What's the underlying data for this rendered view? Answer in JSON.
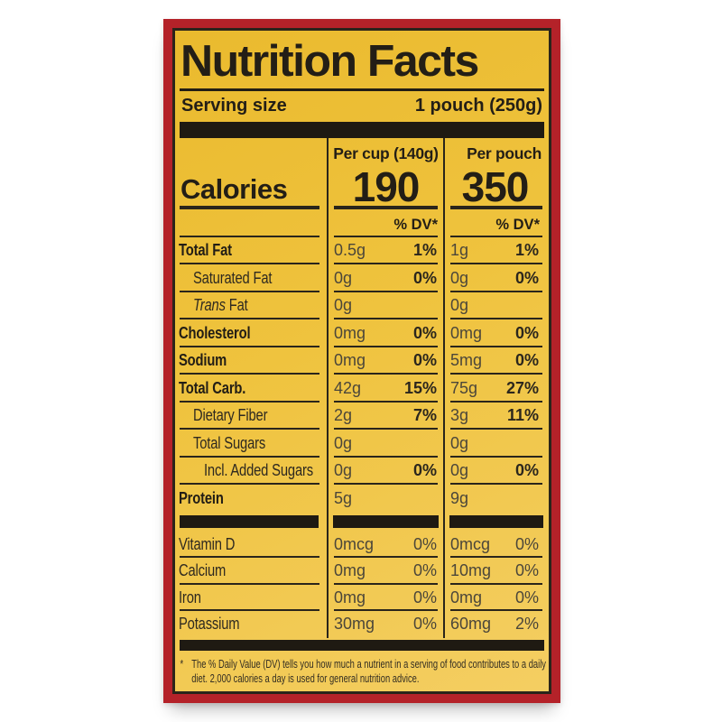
{
  "colors": {
    "label_yellow": "#efc33e",
    "label_red": "#b42229",
    "ink": "#221d15"
  },
  "label": {
    "title": "Nutrition Facts",
    "serving": {
      "label": "Serving size",
      "value": "1 pouch (250g)"
    },
    "columns": {
      "per_cup": "Per cup (140g)",
      "per_pouch": "Per pouch"
    },
    "calories": {
      "label": "Calories",
      "per_cup": "190",
      "per_pouch": "350"
    },
    "dv_header": "% DV*",
    "nutrients": [
      {
        "name": "Total Fat",
        "bold": true,
        "indent": 0,
        "cup_amt": "0.5g",
        "cup_dv": "1%",
        "pouch_amt": "1g",
        "pouch_dv": "1%"
      },
      {
        "name": "Saturated Fat",
        "bold": false,
        "indent": 1,
        "cup_amt": "0g",
        "cup_dv": "0%",
        "pouch_amt": "0g",
        "pouch_dv": "0%"
      },
      {
        "name_italic": "Trans",
        "name": " Fat",
        "bold": false,
        "indent": 1,
        "cup_amt": "0g",
        "cup_dv": "",
        "pouch_amt": "0g",
        "pouch_dv": ""
      },
      {
        "name": "Cholesterol",
        "bold": true,
        "indent": 0,
        "cup_amt": "0mg",
        "cup_dv": "0%",
        "pouch_amt": "0mg",
        "pouch_dv": "0%"
      },
      {
        "name": "Sodium",
        "bold": true,
        "indent": 0,
        "cup_amt": "0mg",
        "cup_dv": "0%",
        "pouch_amt": "5mg",
        "pouch_dv": "0%"
      },
      {
        "name": "Total Carb.",
        "bold": true,
        "indent": 0,
        "cup_amt": "42g",
        "cup_dv": "15%",
        "pouch_amt": "75g",
        "pouch_dv": "27%"
      },
      {
        "name": "Dietary Fiber",
        "bold": false,
        "indent": 1,
        "cup_amt": "2g",
        "cup_dv": "7%",
        "pouch_amt": "3g",
        "pouch_dv": "11%"
      },
      {
        "name": "Total Sugars",
        "bold": false,
        "indent": 1,
        "cup_amt": "0g",
        "cup_dv": "",
        "pouch_amt": "0g",
        "pouch_dv": ""
      },
      {
        "name": "Incl. Added Sugars",
        "bold": false,
        "indent": 2,
        "cup_amt": "0g",
        "cup_dv": "0%",
        "pouch_amt": "0g",
        "pouch_dv": "0%"
      },
      {
        "name": "Protein",
        "bold": true,
        "indent": 0,
        "cup_amt": "5g",
        "cup_dv": "",
        "pouch_amt": "9g",
        "pouch_dv": ""
      }
    ],
    "minerals": [
      {
        "name": "Vitamin D",
        "cup_amt": "0mcg",
        "cup_dv": "0%",
        "pouch_amt": "0mcg",
        "pouch_dv": "0%"
      },
      {
        "name": "Calcium",
        "cup_amt": "0mg",
        "cup_dv": "0%",
        "pouch_amt": "10mg",
        "pouch_dv": "0%"
      },
      {
        "name": "Iron",
        "cup_amt": "0mg",
        "cup_dv": "0%",
        "pouch_amt": "0mg",
        "pouch_dv": "0%"
      },
      {
        "name": "Potassium",
        "cup_amt": "30mg",
        "cup_dv": "0%",
        "pouch_amt": "60mg",
        "pouch_dv": "2%"
      }
    ],
    "footnote_marker": "*",
    "footnote": "The % Daily Value (DV) tells you how much a nutrient in a serving of food contributes to a daily diet. 2,000 calories a day is used for general nutrition advice."
  }
}
